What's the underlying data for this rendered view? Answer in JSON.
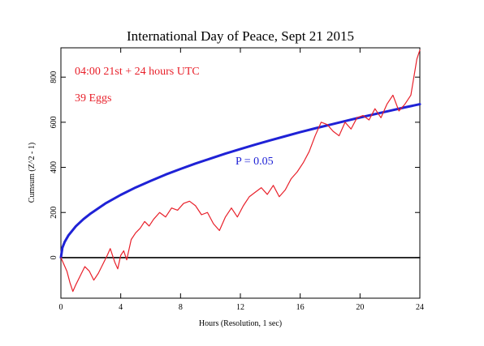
{
  "chart_data": {
    "type": "line",
    "title": "International Day of Peace, Sept 21 2015",
    "xlabel": "Hours (Resolution, 1 sec)",
    "ylabel": "Cumsum (Z^2 - 1)",
    "xlim": [
      0,
      24
    ],
    "ylim": [
      -180,
      930
    ],
    "x_ticks": [
      0,
      4,
      8,
      12,
      16,
      20,
      24
    ],
    "y_ticks": [
      0,
      200,
      400,
      600,
      800
    ],
    "annotations": {
      "period": "04:00 21st + 24 hours UTC",
      "eggs": "39 Eggs",
      "probability": "P = 0.05"
    },
    "series": [
      {
        "name": "",
        "color": "#e8202a",
        "x": [
          0,
          0.2,
          0.4,
          0.6,
          0.8,
          1.0,
          1.3,
          1.6,
          1.9,
          2.2,
          2.5,
          2.8,
          3.1,
          3.3,
          3.6,
          3.8,
          4.0,
          4.2,
          4.4,
          4.7,
          5.0,
          5.3,
          5.6,
          5.9,
          6.2,
          6.6,
          7.0,
          7.4,
          7.8,
          8.2,
          8.6,
          9.0,
          9.4,
          9.8,
          10.2,
          10.6,
          11.0,
          11.4,
          11.8,
          12.2,
          12.6,
          13.0,
          13.4,
          13.8,
          14.2,
          14.6,
          15.0,
          15.4,
          15.8,
          16.2,
          16.6,
          17.0,
          17.4,
          17.8,
          18.2,
          18.6,
          19.0,
          19.4,
          19.8,
          20.2,
          20.6,
          21.0,
          21.4,
          21.8,
          22.2,
          22.6,
          23.0,
          23.4,
          23.6,
          23.8,
          24.0
        ],
        "values": [
          0,
          -30,
          -60,
          -110,
          -150,
          -120,
          -80,
          -40,
          -60,
          -100,
          -70,
          -30,
          10,
          40,
          -20,
          -50,
          10,
          30,
          -10,
          80,
          110,
          130,
          160,
          140,
          170,
          200,
          180,
          220,
          210,
          240,
          250,
          230,
          190,
          200,
          150,
          120,
          180,
          220,
          180,
          230,
          270,
          290,
          310,
          280,
          320,
          270,
          300,
          350,
          380,
          420,
          470,
          540,
          600,
          590,
          560,
          540,
          600,
          570,
          620,
          630,
          610,
          660,
          620,
          680,
          720,
          650,
          680,
          720,
          800,
          880,
          920
        ]
      },
      {
        "name": "",
        "color": "#1f22d6",
        "x": [
          0,
          0.1,
          0.25,
          0.5,
          1,
          1.5,
          2,
          3,
          4,
          5,
          6,
          7,
          8,
          9,
          10,
          11,
          12,
          13,
          14,
          15,
          16,
          17,
          18,
          19,
          20,
          21,
          22,
          23,
          24
        ],
        "values": [
          0,
          44,
          69,
          98,
          139,
          170,
          196,
          241,
          278,
          311,
          340,
          368,
          393,
          417,
          439,
          461,
          481,
          501,
          520,
          538,
          556,
          573,
          589,
          605,
          621,
          636,
          651,
          666,
          680
        ]
      },
      {
        "name": "",
        "color": "#000000",
        "x": [
          0,
          24
        ],
        "values": [
          0,
          0
        ]
      }
    ]
  }
}
